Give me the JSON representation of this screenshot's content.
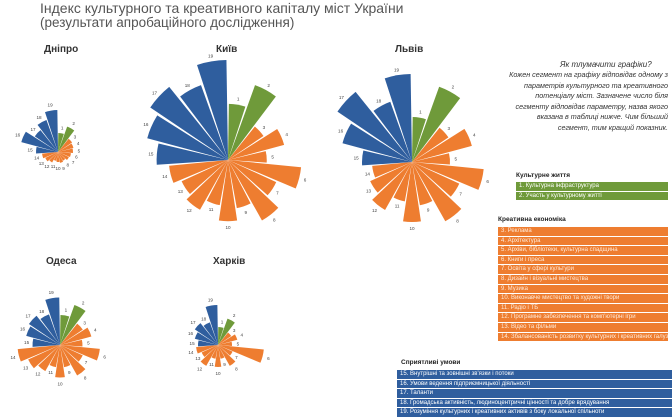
{
  "title": "Індекс культурного та креативного капіталу міст України",
  "subtitle": "(результати апробаційного дослідження)",
  "explanation": {
    "heading": "Як тлумачити графіки?",
    "text": "Кожен сегмент на графіку відповідає одному з параметрів культурного та креативного потенціалу міст. Зазначене число біля сегменту відповідає параметру, назва якого вказана в таблиці нижче. Чим більший сегмент, тим кращий показник."
  },
  "colors": {
    "culture": "#6f9a3a",
    "creative": "#ee7d30",
    "favorable": "#2f5e9e"
  },
  "legend": {
    "culture": {
      "title": "Культурне життя",
      "items": [
        "1. Культурна інфраструктура",
        "2. Участь у культурному житті"
      ]
    },
    "creative": {
      "title": "Креативна економіка",
      "items": [
        "3. Реклама",
        "4. Архітектура",
        "5. Архіви, бібліотеки, культурна спадщина",
        "6. Книги і преса",
        "7. Освіта у сфері культури",
        "8. Дизайн і візуальні мистецтва",
        "9. Музика",
        "10. Виконавче мистецтво та художні твори",
        "11. Радіо і ТБ",
        "12. Програмне забезпечення та комп'ютерні ігри",
        "13. Відео та фільми",
        "14. Збалансованість розвитку культурних і креативних галузей у місті"
      ]
    },
    "favorable": {
      "title": "Сприятливі умови",
      "items": [
        "15. Внутрішні та зовнішні зв'язки і потоки",
        "16. Умови ведення підприємницької діяльності",
        "17. Таланти",
        "18. Громадська активність, людиноцентричні цінності та добре врядування",
        "19. Розуміння культурних і креативних активів з боку локальної спільноти"
      ]
    }
  },
  "chart_data": [
    {
      "type": "polar-area",
      "city": "Дніпро",
      "labels": [
        "1",
        "2",
        "3",
        "4",
        "5",
        "6",
        "7",
        "8",
        "9",
        "10",
        "11",
        "12",
        "13",
        "14",
        "15",
        "16",
        "17",
        "18",
        "19"
      ],
      "values": [
        19,
        27,
        17,
        16,
        15,
        13,
        12,
        10,
        11,
        10,
        9,
        12,
        14,
        16,
        22,
        38,
        28,
        34,
        42
      ]
    },
    {
      "type": "polar-area",
      "city": "Київ",
      "labels": [
        "1",
        "2",
        "3",
        "4",
        "5",
        "6",
        "7",
        "8",
        "9",
        "10",
        "11",
        "12",
        "13",
        "14",
        "15",
        "16",
        "17",
        "18",
        "19"
      ],
      "values": [
        55,
        78,
        42,
        57,
        38,
        72,
        52,
        68,
        48,
        60,
        45,
        56,
        50,
        58,
        70,
        82,
        92,
        78,
        98
      ]
    },
    {
      "type": "polar-area",
      "city": "Львів",
      "labels": [
        "1",
        "2",
        "3",
        "4",
        "5",
        "6",
        "7",
        "8",
        "9",
        "10",
        "11",
        "12",
        "13",
        "14",
        "15",
        "16",
        "17",
        "18",
        "19"
      ],
      "values": [
        45,
        80,
        44,
        62,
        38,
        72,
        52,
        68,
        44,
        60,
        40,
        55,
        46,
        40,
        50,
        72,
        90,
        64,
        88
      ]
    },
    {
      "type": "polar-area",
      "city": "Одеса",
      "labels": [
        "1",
        "2",
        "3",
        "4",
        "5",
        "6",
        "7",
        "8",
        "9",
        "10",
        "11",
        "12",
        "13",
        "14",
        "15",
        "16",
        "17",
        "18",
        "19"
      ],
      "values": [
        24,
        34,
        22,
        26,
        18,
        32,
        20,
        28,
        18,
        26,
        18,
        24,
        28,
        34,
        22,
        28,
        30,
        26,
        38
      ]
    },
    {
      "type": "polar-area",
      "city": "Харків",
      "labels": [
        "1",
        "2",
        "3",
        "4",
        "5",
        "6",
        "7",
        "8",
        "9",
        "10",
        "11",
        "12",
        "13",
        "14",
        "15",
        "16",
        "17",
        "18",
        "19"
      ],
      "values": [
        18,
        28,
        16,
        20,
        14,
        46,
        16,
        24,
        14,
        22,
        14,
        24,
        18,
        22,
        20,
        24,
        28,
        24,
        40
      ]
    }
  ]
}
